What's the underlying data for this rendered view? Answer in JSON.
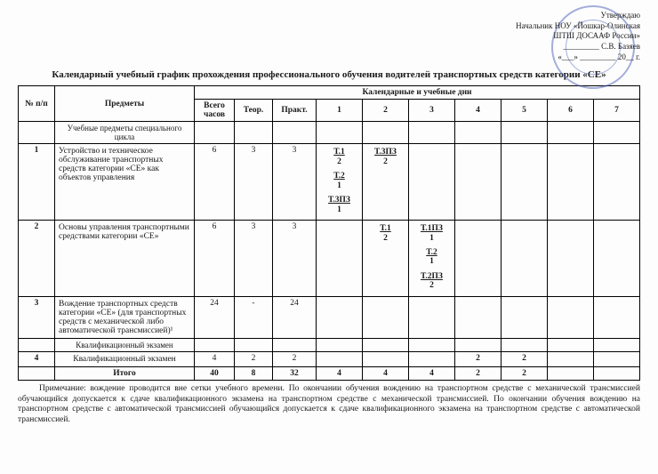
{
  "approve": {
    "l1": "Утверждаю",
    "l2": "Начальник НОУ «Йошкар-Олинская",
    "l3": "ШТШ ДОСААФ России»",
    "l4": "_________ С.В. Базяев",
    "l5": "«___» _________ 20__ г."
  },
  "title": "Календарный учебный график прохождения профессионального обучения водителей транспортных средств категории «СЕ»",
  "headers": {
    "num": "№ п/п",
    "subj": "Предметы",
    "days": "Календарные и учебные дни",
    "total": "Всего часов",
    "theor": "Теор.",
    "pract": "Практ.",
    "d1": "1",
    "d2": "2",
    "d3": "3",
    "d4": "4",
    "d5": "5",
    "d6": "6",
    "d7": "7"
  },
  "section1": "Учебные предметы специального цикла",
  "rows": [
    {
      "n": "1",
      "subj": "Устройство и техническое обслуживание транспортных средств категории «СЕ» как объектов управления",
      "total": "6",
      "theor": "3",
      "pract": "3",
      "d1": [
        {
          "t": "Т.1",
          "h": "2"
        },
        {
          "t": "Т.2",
          "h": "1"
        },
        {
          "t": "Т.3ПЗ",
          "h": "1"
        }
      ],
      "d2": [
        {
          "t": "Т.3ПЗ",
          "h": "2"
        }
      ]
    },
    {
      "n": "2",
      "subj": "Основы управления транспортными средствами категории «СЕ»",
      "total": "6",
      "theor": "3",
      "pract": "3",
      "d2": [
        {
          "t": "Т.1",
          "h": "2"
        }
      ],
      "d3": [
        {
          "t": "Т.1ПЗ",
          "h": "1"
        },
        {
          "t": "Т.2",
          "h": "1"
        },
        {
          "t": "Т.2ПЗ",
          "h": "2"
        }
      ]
    },
    {
      "n": "3",
      "subj": "Вождение транспортных средств категории «СЕ» (для транспортных средств с механической либо автоматической трансмиссией)¹",
      "total": "24",
      "theor": "-",
      "pract": "24"
    }
  ],
  "section2": "Квалификационный экзамен",
  "exam": {
    "n": "4",
    "subj": "Квалификационный экзамен",
    "total": "4",
    "theor": "2",
    "pract": "2",
    "d4": "2",
    "d5": "2"
  },
  "totals": {
    "label": "Итого",
    "total": "40",
    "theor": "8",
    "pract": "32",
    "d1": "4",
    "d2": "4",
    "d3": "4",
    "d4": "2",
    "d5": "2"
  },
  "note": "Примечание: вождение проводится вне сетки учебного времени. По окончании обучения вождению на транспортном средстве с механической трансмиссией обучающийся допускается к сдаче квалификационного экзамена на транспортном средстве с механической трансмиссией. По окончании обучения вождению на транспортном средстве с автоматической трансмиссией обучающийся допускается к сдаче квалификационного экзамена на транспортном средстве с автоматической трансмиссией."
}
